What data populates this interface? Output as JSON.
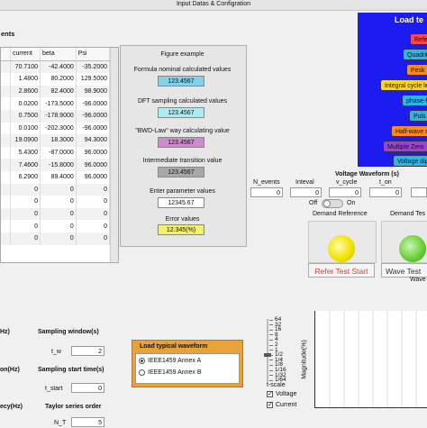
{
  "window_title": "Input Datas & Configration",
  "table": {
    "title": "ents",
    "columns": [
      "current",
      "beta",
      "Psi"
    ],
    "rows": [
      [
        "70.7100",
        "-42.4000",
        "-35.2000"
      ],
      [
        "1.4800",
        "80.2000",
        "129.5000"
      ],
      [
        "2.8600",
        "82.4000",
        "98.9000"
      ],
      [
        "0.0200",
        "-173.5000",
        "-96.0000"
      ],
      [
        "0.7500",
        "-178.9000",
        "-96.0000"
      ],
      [
        "0.0100",
        "-202.3000",
        "-96.0000"
      ],
      [
        "19.0900",
        "18.3000",
        "94.3000"
      ],
      [
        "5.4300",
        "-87.0000",
        "96.0000"
      ],
      [
        "7.4600",
        "-15.8000",
        "96.0000"
      ],
      [
        "6.2900",
        "89.4000",
        "96.0000"
      ],
      [
        "0",
        "0",
        "0"
      ],
      [
        "0",
        "0",
        "0"
      ],
      [
        "0",
        "0",
        "0"
      ],
      [
        "0",
        "0",
        "0"
      ],
      [
        "0",
        "0",
        "0"
      ]
    ]
  },
  "figure_example": {
    "title": "Figure example",
    "items": [
      {
        "label": "Formula nominal calculated values",
        "value": "123.4567"
      },
      {
        "label": "DFT sampling calculated values",
        "value": "123.4567"
      },
      {
        "label": "\"BWD-Law\" way calculating value",
        "value": "123.4567"
      },
      {
        "label": "Intermediate transition value",
        "value": "123.4567"
      },
      {
        "label": "Enter parameter values",
        "value": "12345.67"
      },
      {
        "label": "Error values",
        "value": "12.345(%)"
      }
    ]
  },
  "load_test": {
    "title": "Load te",
    "buttons": [
      "Refe",
      "Quadrit",
      "Pesk",
      "Integral cycle lea",
      "phase-f",
      "Puls",
      "Half-wave re",
      "Multiple Zero",
      "Voltage dip"
    ]
  },
  "voltage_waveform": {
    "title": "Voltage Waveform (s)",
    "fields": [
      {
        "label": "N_events",
        "value": "0"
      },
      {
        "label": "Inteval",
        "value": "0"
      },
      {
        "label": "v_cycle",
        "value": "0"
      },
      {
        "label": "t_on",
        "value": "0"
      }
    ]
  },
  "switch": {
    "off": "Off",
    "on": "On"
  },
  "demand": [
    {
      "label": "Demand Reference",
      "button": "Refer Test Start"
    },
    {
      "label": "Demand Tes",
      "button": "Wave Test"
    }
  ],
  "sampling": {
    "left_labels": [
      "Hz)",
      "on(Hz)",
      "ecy(Hz)"
    ],
    "groups": [
      {
        "title": "Sampling window(s)",
        "field": "t_w",
        "value": "2"
      },
      {
        "title": "Sampling start time(s)",
        "field": "t_start",
        "value": "0"
      },
      {
        "title": "Taylor series order",
        "field": "N_T",
        "value": "5"
      }
    ]
  },
  "load_typical": {
    "title": "Load typical waveform",
    "options": [
      "IEEE1459 Annex A",
      "IEEE1459 Annex B"
    ]
  },
  "waveform_plot": {
    "title": "Wave",
    "ylabel": "Magnitude(%)"
  },
  "t_scale": {
    "label": "t-scale",
    "ticks": [
      "64",
      "32",
      "16",
      "8",
      "4",
      "2",
      "1",
      "1/2",
      "1/4",
      "1/8",
      "1/16",
      "1/32",
      "1/64"
    ]
  },
  "checkboxes": [
    "Voltage",
    "Current"
  ]
}
